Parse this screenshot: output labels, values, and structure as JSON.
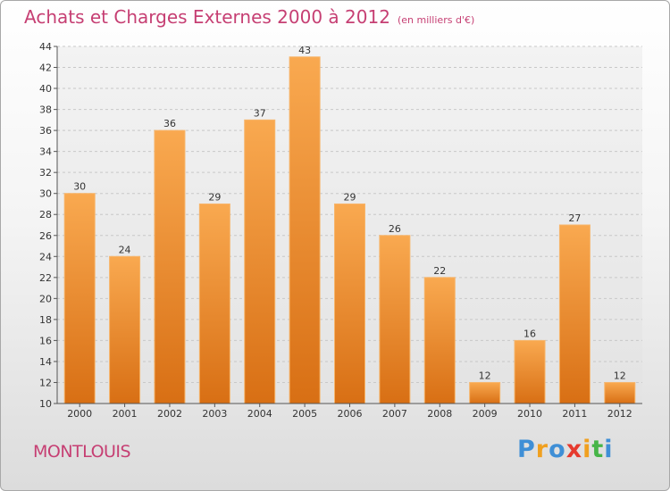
{
  "header": {
    "title": "Achats et Charges Externes 2000 à 2012",
    "subtitle": "(en milliers d'€)"
  },
  "location": "MONTLOUIS",
  "logo": {
    "letters": [
      "P",
      "r",
      "o",
      "x",
      "i",
      "t",
      "i"
    ],
    "colors": [
      "#3f8fd6",
      "#f0a020",
      "#3f8fd6",
      "#e63a2e",
      "#f0a020",
      "#46b548",
      "#3f8fd6"
    ]
  },
  "chart_data": {
    "type": "bar",
    "categories": [
      "2000",
      "2001",
      "2002",
      "2003",
      "2004",
      "2005",
      "2006",
      "2007",
      "2008",
      "2009",
      "2010",
      "2011",
      "2012"
    ],
    "values": [
      30,
      24,
      36,
      29,
      37,
      43,
      29,
      26,
      22,
      12,
      16,
      27,
      12
    ],
    "data_labels": [
      "30",
      "24",
      "36",
      "29",
      "37",
      "43",
      "29",
      "26",
      "22",
      "12",
      "16",
      "27",
      "12"
    ],
    "title": "Achats et Charges Externes 2000 à 2012",
    "ylim": [
      10,
      44
    ],
    "yticks": [
      10,
      12,
      14,
      16,
      18,
      20,
      22,
      24,
      26,
      28,
      30,
      32,
      34,
      36,
      38,
      40,
      42,
      44
    ],
    "grid": true,
    "bar_color": "#f0922e"
  }
}
